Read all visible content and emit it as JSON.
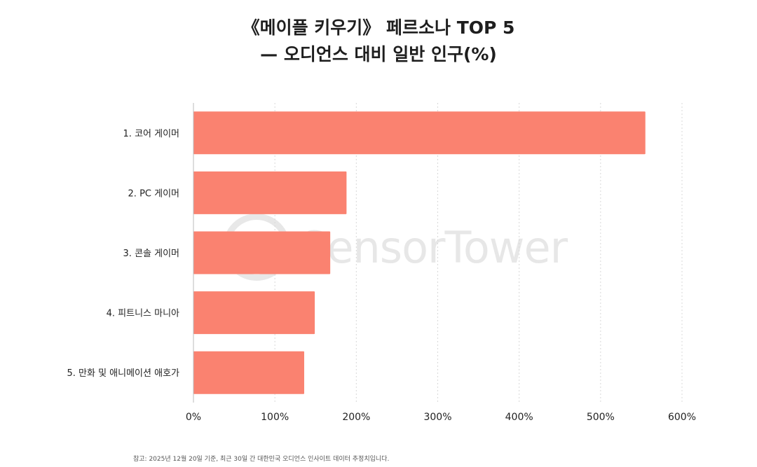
{
  "header": {
    "title_line1": "《메이플 키우기》 페르소나 TOP 5",
    "title_line2": "— 오디언스 대비 일반 인구(%)"
  },
  "watermark": {
    "text": "SensorTower",
    "icon": "sensortower-logo-icon"
  },
  "footnote": "참고: 2025년 12월 20일 기준, 최근 30일 간 대한민국 오디언스 인사이트 데이터 추정치입니다.",
  "chart_data": {
    "type": "bar",
    "orientation": "horizontal",
    "categories": [
      "1. 코어 게이머",
      "2. PC 게이머",
      "3. 콘솔 게이머",
      "4. 피트니스 마니아",
      "5. 만화 및 애니메이션 애호가"
    ],
    "values": [
      555,
      188,
      168,
      149,
      136
    ],
    "xlim": [
      0,
      600
    ],
    "xticks": [
      0,
      100,
      200,
      300,
      400,
      500,
      600
    ],
    "xtick_labels": [
      "0%",
      "100%",
      "200%",
      "300%",
      "400%",
      "500%",
      "600%"
    ],
    "grid": true,
    "bar_color": "#FA8270",
    "grid_color": "#d8d8d8"
  }
}
